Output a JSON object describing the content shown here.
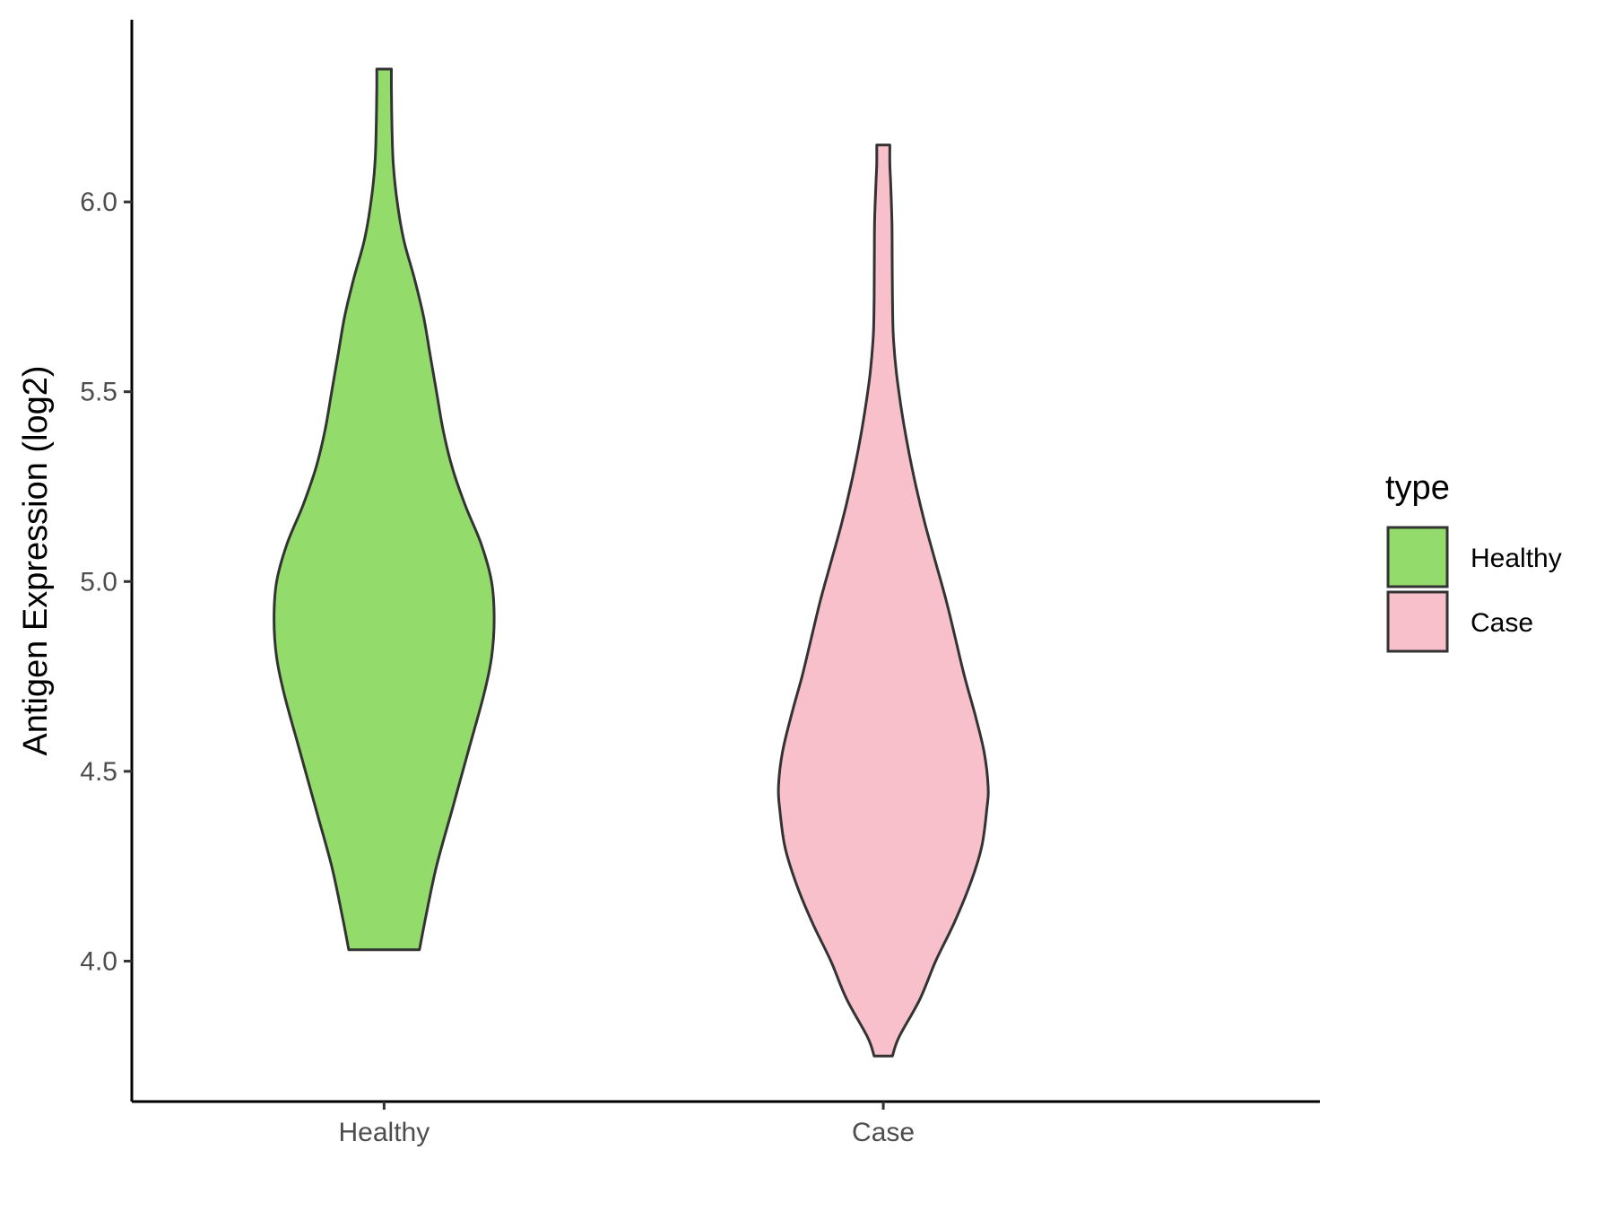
{
  "chart_data": {
    "type": "violin",
    "ylabel": "Antigen Expression (log2)",
    "xlabel": "",
    "categories": [
      "Healthy",
      "Case"
    ],
    "ylim": [
      3.63,
      6.48
    ],
    "yticks": [
      4.0,
      4.5,
      5.0,
      5.5,
      6.0
    ],
    "ytick_labels": [
      "4.0",
      "4.5",
      "5.0",
      "5.5",
      "6.0"
    ],
    "grid": false,
    "legend": {
      "title": "type",
      "position": "right",
      "entries": [
        {
          "label": "Healthy",
          "color": "#93dc6b"
        },
        {
          "label": "Case",
          "color": "#f8c0cb"
        }
      ]
    },
    "series": [
      {
        "name": "Healthy",
        "color": "#93dc6b",
        "min": 4.03,
        "max": 6.35,
        "density_profile": [
          [
            4.03,
            0.135
          ],
          [
            4.12,
            0.16
          ],
          [
            4.25,
            0.2
          ],
          [
            4.4,
            0.26
          ],
          [
            4.55,
            0.32
          ],
          [
            4.7,
            0.38
          ],
          [
            4.8,
            0.41
          ],
          [
            4.9,
            0.42
          ],
          [
            5.0,
            0.41
          ],
          [
            5.1,
            0.37
          ],
          [
            5.2,
            0.31
          ],
          [
            5.3,
            0.26
          ],
          [
            5.4,
            0.225
          ],
          [
            5.5,
            0.2
          ],
          [
            5.6,
            0.175
          ],
          [
            5.7,
            0.15
          ],
          [
            5.8,
            0.115
          ],
          [
            5.9,
            0.075
          ],
          [
            6.0,
            0.05
          ],
          [
            6.1,
            0.035
          ],
          [
            6.2,
            0.03
          ],
          [
            6.3,
            0.028
          ],
          [
            6.35,
            0.028
          ]
        ]
      },
      {
        "name": "Case",
        "color": "#f8c0cb",
        "min": 3.75,
        "max": 6.15,
        "density_profile": [
          [
            3.75,
            0.035
          ],
          [
            3.8,
            0.06
          ],
          [
            3.9,
            0.14
          ],
          [
            4.0,
            0.2
          ],
          [
            4.1,
            0.27
          ],
          [
            4.2,
            0.33
          ],
          [
            4.3,
            0.375
          ],
          [
            4.4,
            0.395
          ],
          [
            4.46,
            0.4
          ],
          [
            4.55,
            0.385
          ],
          [
            4.65,
            0.35
          ],
          [
            4.75,
            0.31
          ],
          [
            4.85,
            0.275
          ],
          [
            4.95,
            0.24
          ],
          [
            5.05,
            0.2
          ],
          [
            5.15,
            0.16
          ],
          [
            5.25,
            0.125
          ],
          [
            5.35,
            0.095
          ],
          [
            5.45,
            0.07
          ],
          [
            5.55,
            0.05
          ],
          [
            5.65,
            0.038
          ],
          [
            5.75,
            0.035
          ],
          [
            5.85,
            0.034
          ],
          [
            5.95,
            0.033
          ],
          [
            6.05,
            0.028
          ],
          [
            6.1,
            0.025
          ],
          [
            6.15,
            0.025
          ]
        ]
      }
    ]
  }
}
